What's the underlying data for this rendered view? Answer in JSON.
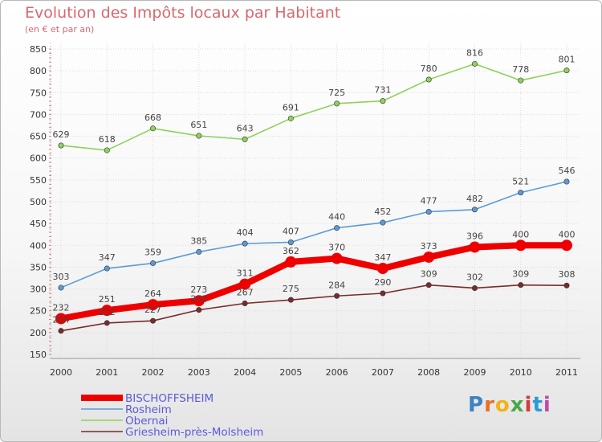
{
  "header": {
    "title": "Evolution des Impôts locaux par Habitant",
    "subtitle": "(en € et par an)"
  },
  "logo": {
    "letters": [
      "P",
      "r",
      "o",
      "x",
      "i",
      "t",
      "i"
    ],
    "colors": [
      "#3b82c4",
      "#e8702a",
      "#f2b21c",
      "#4aa84a",
      "#d63a3a",
      "#2a9bd6",
      "#c04aa8"
    ]
  },
  "chart_data": {
    "type": "line",
    "title": "Evolution des Impôts locaux par Habitant",
    "subtitle": "(en € et par an)",
    "xlabel": "",
    "ylabel": "",
    "x": [
      "2000",
      "2001",
      "2002",
      "2003",
      "2004",
      "2005",
      "2006",
      "2007",
      "2008",
      "2009",
      "2010",
      "2011"
    ],
    "ylim": [
      150,
      850
    ],
    "yticks": [
      150,
      200,
      250,
      300,
      350,
      400,
      450,
      500,
      550,
      600,
      650,
      700,
      750,
      800,
      850
    ],
    "grid": true,
    "legend": "bottom-left",
    "series": [
      {
        "name": "BISCHOFFSHEIM",
        "values": [
          232,
          251,
          264,
          273,
          311,
          362,
          370,
          347,
          373,
          396,
          400,
          400
        ],
        "color": "#ee0000",
        "emphasis": true
      },
      {
        "name": "Rosheim",
        "values": [
          303,
          347,
          359,
          385,
          404,
          407,
          440,
          452,
          477,
          482,
          521,
          546
        ],
        "color": "#5b9bd5"
      },
      {
        "name": "Obernai",
        "values": [
          629,
          618,
          668,
          651,
          643,
          691,
          725,
          731,
          780,
          816,
          778,
          801
        ],
        "color": "#8fd15a"
      },
      {
        "name": "Griesheim-près-Molsheim",
        "values": [
          204,
          222,
          227,
          252,
          267,
          275,
          284,
          290,
          309,
          302,
          309,
          308
        ],
        "color": "#7b2a2a"
      }
    ]
  }
}
